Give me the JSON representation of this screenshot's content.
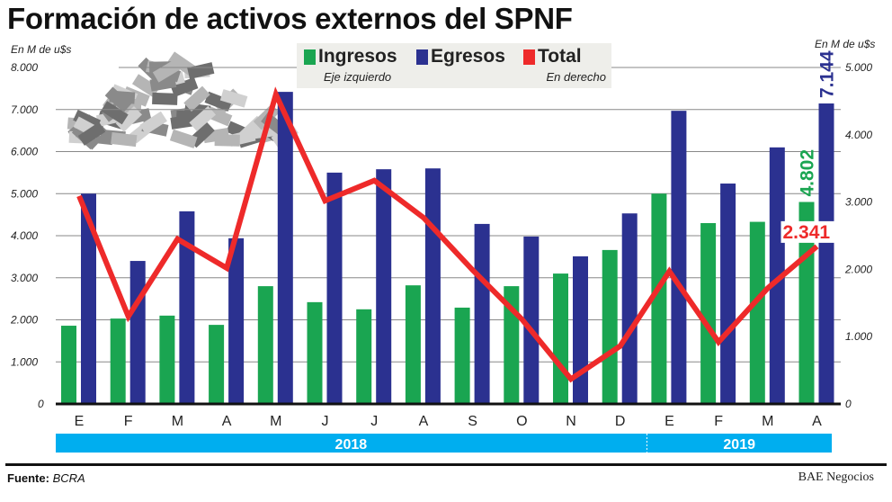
{
  "chart_data": {
    "type": "bar",
    "title": "Formación de activos externos del SPNF",
    "ylabel_left": "En M de u$s",
    "ylabel_right": "En M de u$s",
    "ylim_left": [
      0,
      8000
    ],
    "ylim_right": [
      0,
      5000
    ],
    "yticks_left": [
      "0",
      "1.000",
      "2.000",
      "3.000",
      "4.000",
      "5.000",
      "6.000",
      "7.000",
      "8.000"
    ],
    "yticks_right": [
      "0",
      "1.000",
      "2.000",
      "3.000",
      "4.000",
      "5.000"
    ],
    "categories": [
      "E",
      "F",
      "M",
      "A",
      "M",
      "J",
      "J",
      "A",
      "S",
      "O",
      "N",
      "D",
      "E",
      "F",
      "M",
      "A"
    ],
    "years": [
      {
        "label": "2018",
        "months": 12
      },
      {
        "label": "2019",
        "months": 4
      }
    ],
    "grid": true,
    "legend_placement": "top-center",
    "series": [
      {
        "name": "Ingresos",
        "axis": "left",
        "type": "bar",
        "color": "#1aa551",
        "values": [
          1860,
          2030,
          2100,
          1880,
          2800,
          2420,
          2250,
          2820,
          2290,
          2800,
          3100,
          3660,
          5000,
          4300,
          4330,
          4802
        ]
      },
      {
        "name": "Egresos",
        "axis": "left",
        "type": "bar",
        "color": "#2b3190",
        "values": [
          5000,
          3400,
          4580,
          3940,
          7420,
          5500,
          5580,
          5600,
          4280,
          3980,
          3510,
          4530,
          6970,
          5240,
          6100,
          7144
        ]
      },
      {
        "name": "Total",
        "axis": "right",
        "type": "line",
        "color": "#ee2a2a",
        "values": [
          3090,
          1300,
          2450,
          2020,
          4600,
          3020,
          3320,
          2770,
          1990,
          1260,
          370,
          860,
          1970,
          920,
          1720,
          2341
        ]
      }
    ],
    "annotations": [
      {
        "series": "Egresos",
        "index": 15,
        "text": "7.144"
      },
      {
        "series": "Ingresos",
        "index": 15,
        "text": "4.802"
      },
      {
        "series": "Total",
        "index": 15,
        "text": "2.341"
      }
    ]
  },
  "legend": {
    "ingresos": "Ingresos",
    "egresos": "Egresos",
    "total": "Total",
    "left_note": "Eje izquierdo",
    "right_note": "En derecho"
  },
  "footer": {
    "source_label": "Fuente:",
    "source": "BCRA",
    "brand": "BAE Negocios"
  },
  "colors": {
    "year_band": "#00aeef",
    "ingresos": "#1aa551",
    "egresos": "#2b3190",
    "total": "#ee2a2a"
  }
}
